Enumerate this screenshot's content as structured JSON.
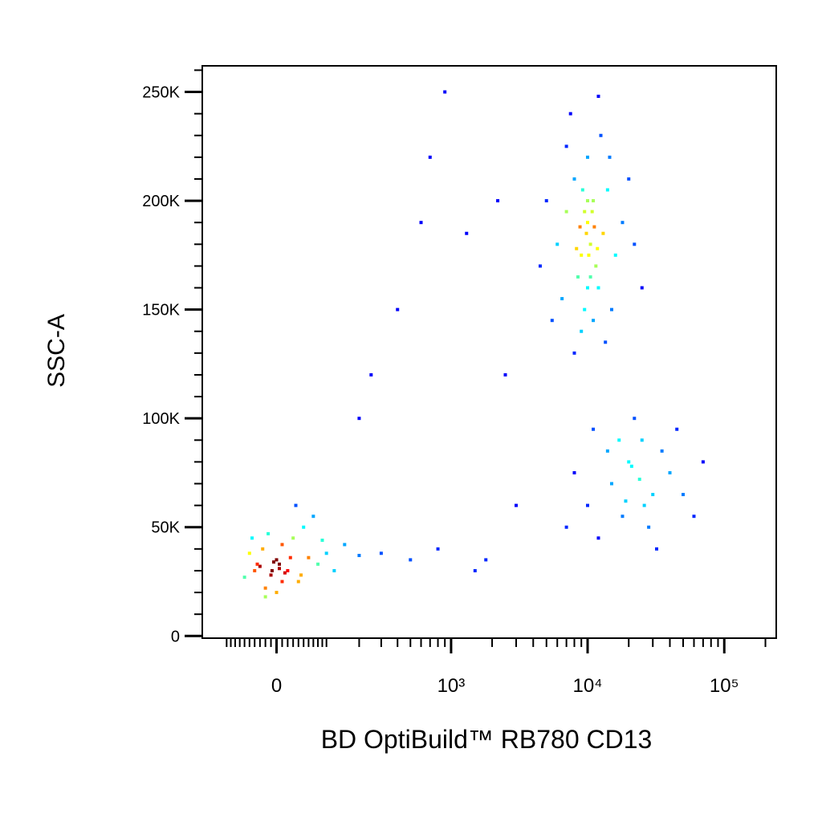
{
  "chart_data": {
    "type": "scatter",
    "xlabel": "BD OptiBuild™ RB780 CD13",
    "ylabel": "SSC-A",
    "xscale": "biexponential",
    "xlim": [
      -170,
      240000
    ],
    "ylim": [
      -1000,
      262000
    ],
    "xticks": [
      0,
      {
        "value": 1000,
        "label": "10³"
      },
      {
        "value": 10000,
        "label": "10⁴"
      },
      {
        "value": 100000,
        "label": "10⁵"
      }
    ],
    "xminorticks": [
      -100,
      -90,
      -80,
      -70,
      -60,
      -50,
      -40,
      -30,
      -20,
      -10,
      10,
      20,
      30,
      40,
      50,
      60,
      70,
      80,
      90,
      100,
      200,
      300,
      400,
      500,
      600,
      700,
      800,
      900,
      2000,
      3000,
      4000,
      5000,
      6000,
      7000,
      8000,
      9000,
      20000,
      30000,
      40000,
      50000,
      60000,
      70000,
      80000,
      90000,
      200000
    ],
    "yticks": [
      0,
      {
        "value": 50000,
        "label": "50K"
      },
      {
        "value": 100000,
        "label": "100K"
      },
      {
        "value": 150000,
        "label": "150K"
      },
      {
        "value": 200000,
        "label": "200K"
      },
      {
        "value": 250000,
        "label": "250K"
      }
    ],
    "yminorticks": [
      10000,
      20000,
      30000,
      40000,
      60000,
      70000,
      80000,
      90000,
      110000,
      120000,
      130000,
      140000,
      160000,
      170000,
      180000,
      190000,
      210000,
      220000,
      230000,
      240000,
      260000
    ],
    "colormap": "jet",
    "x": [
      -30,
      -10,
      0,
      20,
      -50,
      10,
      40,
      -20,
      60,
      -40,
      30,
      80,
      5,
      -5,
      15,
      -25,
      50,
      100,
      120,
      -60,
      0,
      70,
      -15,
      150,
      25,
      -35,
      45,
      10,
      90,
      -45,
      35,
      200,
      -20,
      5,
      -8,
      300,
      500,
      800,
      1500,
      400,
      600,
      900,
      700,
      2500,
      1300,
      3000,
      250,
      1800,
      2200,
      200,
      10000,
      9000,
      11000,
      12000,
      8000,
      10500,
      9500,
      13000,
      7000,
      11500,
      10000,
      8500,
      14000,
      6000,
      16000,
      9000,
      12500,
      7500,
      10000,
      11000,
      5000,
      18000,
      9800,
      10200,
      10800,
      9200,
      8800,
      11800,
      6500,
      15000,
      20000,
      4500,
      13500,
      8000,
      22000,
      7000,
      12000,
      9500,
      10500,
      11200,
      8300,
      25000,
      5500,
      14500,
      10000,
      20000,
      15000,
      25000,
      30000,
      18000,
      10000,
      40000,
      22000,
      12000,
      35000,
      28000,
      8000,
      50000,
      17000,
      60000,
      24000,
      19000,
      14000,
      7000,
      45000,
      32000,
      21000,
      11000,
      70000,
      26000
    ],
    "values": [
      32000,
      28000,
      35000,
      30000,
      38000,
      42000,
      25000,
      22000,
      36000,
      30000,
      45000,
      33000,
      31000,
      34000,
      29000,
      40000,
      50000,
      38000,
      30000,
      27000,
      20000,
      55000,
      47000,
      42000,
      36000,
      33000,
      28000,
      25000,
      44000,
      45000,
      60000,
      37000,
      18000,
      33000,
      30000,
      38000,
      35000,
      40000,
      30000,
      150000,
      190000,
      250000,
      220000,
      120000,
      185000,
      60000,
      120000,
      35000,
      200000,
      100000,
      190000,
      175000,
      200000,
      160000,
      210000,
      180000,
      150000,
      185000,
      195000,
      170000,
      220000,
      165000,
      205000,
      180000,
      175000,
      140000,
      230000,
      240000,
      160000,
      145000,
      200000,
      190000,
      185000,
      175000,
      195000,
      205000,
      188000,
      178000,
      155000,
      150000,
      210000,
      170000,
      135000,
      130000,
      180000,
      225000,
      248000,
      195000,
      165000,
      188000,
      178000,
      160000,
      145000,
      220000,
      200000,
      80000,
      70000,
      90000,
      65000,
      55000,
      60000,
      75000,
      100000,
      45000,
      85000,
      50000,
      75000,
      65000,
      90000,
      55000,
      72000,
      62000,
      85000,
      50000,
      95000,
      40000,
      78000,
      95000,
      80000,
      60000
    ]
  }
}
